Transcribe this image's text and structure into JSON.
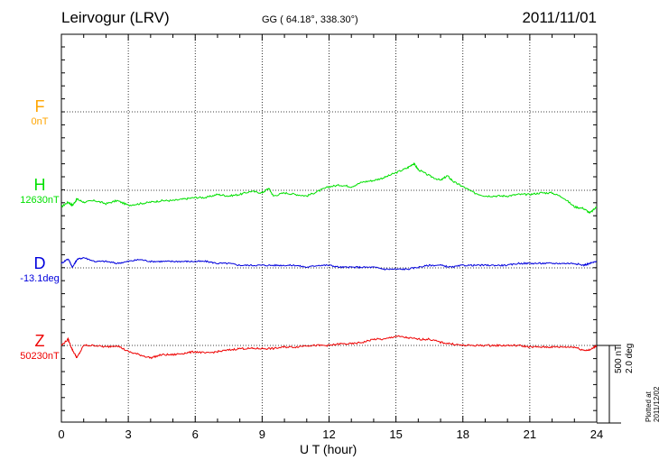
{
  "header": {
    "station": "Leirvogur (LRV)",
    "coordinates": "GG ( 64.18°, 338.30°)",
    "date": "2011/11/01"
  },
  "components": [
    {
      "name": "F",
      "base": "0nT",
      "color": "#FFA500"
    },
    {
      "name": "H",
      "base": "12630nT",
      "color": "#00E000"
    },
    {
      "name": "D",
      "base": "-13.1deg",
      "color": "#0000DD"
    },
    {
      "name": "Z",
      "base": "50230nT",
      "color": "#EE0000"
    }
  ],
  "scale": {
    "field": "500 nT",
    "angle": "2.0 deg"
  },
  "plotted_at": "Plotted at 2011/12/02 01:02 UT",
  "chart_data": {
    "type": "line",
    "title": "Leirvogur (LRV)",
    "xlabel": "U T (hour)",
    "xlim": [
      0,
      24
    ],
    "x_ticks": [
      "0",
      "3",
      "6",
      "9",
      "12",
      "15",
      "18",
      "21",
      "24"
    ],
    "grid": true,
    "series": [
      {
        "name": "H",
        "unit": "nT",
        "x": [
          0,
          0.3,
          0.5,
          0.7,
          1,
          1.5,
          2,
          2.5,
          3,
          3.5,
          4,
          4.5,
          5,
          5.5,
          6,
          6.5,
          7,
          7.5,
          8,
          8.5,
          9,
          9.3,
          9.5,
          10,
          10.5,
          11,
          11.5,
          12,
          12.5,
          13,
          13.5,
          14,
          14.5,
          15,
          15.5,
          15.8,
          16,
          16.5,
          17,
          17.3,
          17.6,
          18,
          18.5,
          19,
          19.5,
          20,
          20.5,
          21,
          21.5,
          22,
          22.5,
          23,
          23.4,
          23.7,
          24
        ],
        "values": [
          -60,
          -30,
          -50,
          -10,
          -30,
          -20,
          -40,
          -20,
          -50,
          -40,
          -30,
          -20,
          -20,
          -10,
          0,
          0,
          20,
          10,
          20,
          40,
          30,
          60,
          10,
          30,
          20,
          10,
          40,
          70,
          80,
          70,
          100,
          110,
          130,
          160,
          190,
          220,
          180,
          140,
          110,
          140,
          100,
          70,
          30,
          10,
          10,
          10,
          20,
          20,
          30,
          30,
          0,
          -60,
          -70,
          -100,
          -60
        ]
      },
      {
        "name": "D",
        "unit": "deg",
        "x": [
          0,
          0.3,
          0.5,
          0.7,
          1,
          1.5,
          2,
          2.5,
          3,
          3.5,
          4,
          4.5,
          5,
          5.5,
          6,
          6.5,
          7,
          7.5,
          8,
          8.5,
          9,
          9.5,
          10,
          10.5,
          11,
          11.5,
          12,
          12.5,
          13,
          13.5,
          14,
          14.5,
          15,
          15.5,
          16,
          16.5,
          17,
          17.5,
          18,
          18.5,
          19,
          19.5,
          20,
          20.5,
          21,
          21.5,
          22,
          22.5,
          23,
          23.4,
          23.7,
          24
        ],
        "values": [
          0,
          0.12,
          -0.1,
          0.1,
          0.15,
          0.05,
          0.05,
          0,
          0.05,
          0.1,
          0.05,
          0.05,
          0.05,
          0.05,
          0.05,
          0.05,
          0,
          0,
          -0.05,
          -0.05,
          -0.05,
          -0.05,
          -0.05,
          -0.05,
          -0.1,
          -0.05,
          -0.05,
          -0.1,
          -0.1,
          -0.1,
          -0.1,
          -0.15,
          -0.15,
          -0.15,
          -0.1,
          -0.05,
          -0.05,
          -0.1,
          -0.05,
          -0.05,
          -0.05,
          -0.05,
          -0.05,
          0,
          0,
          0,
          0,
          0,
          0,
          -0.05,
          0,
          0.05
        ]
      },
      {
        "name": "Z",
        "unit": "nT",
        "x": [
          0,
          0.3,
          0.5,
          0.7,
          1,
          1.5,
          2,
          2.5,
          3,
          3.5,
          4,
          4.5,
          5,
          5.5,
          6,
          6.5,
          7,
          7.5,
          8,
          8.5,
          9,
          9.5,
          10,
          10.5,
          11,
          11.5,
          12,
          12.5,
          13,
          13.5,
          14,
          14.5,
          15,
          15.5,
          16,
          16.5,
          17,
          17.5,
          18,
          18.5,
          19,
          19.5,
          20,
          20.5,
          21,
          21.5,
          22,
          22.5,
          23,
          23.4,
          23.7,
          24
        ],
        "values": [
          0,
          40,
          -30,
          -80,
          0,
          0,
          -10,
          0,
          -40,
          -60,
          -80,
          -60,
          -60,
          -50,
          -40,
          -50,
          -40,
          -30,
          -20,
          -20,
          -20,
          -20,
          -10,
          -10,
          0,
          0,
          0,
          10,
          10,
          20,
          40,
          40,
          60,
          50,
          40,
          40,
          20,
          10,
          0,
          0,
          0,
          0,
          0,
          0,
          -10,
          -10,
          -10,
          -10,
          -10,
          -30,
          -30,
          0
        ]
      }
    ]
  }
}
